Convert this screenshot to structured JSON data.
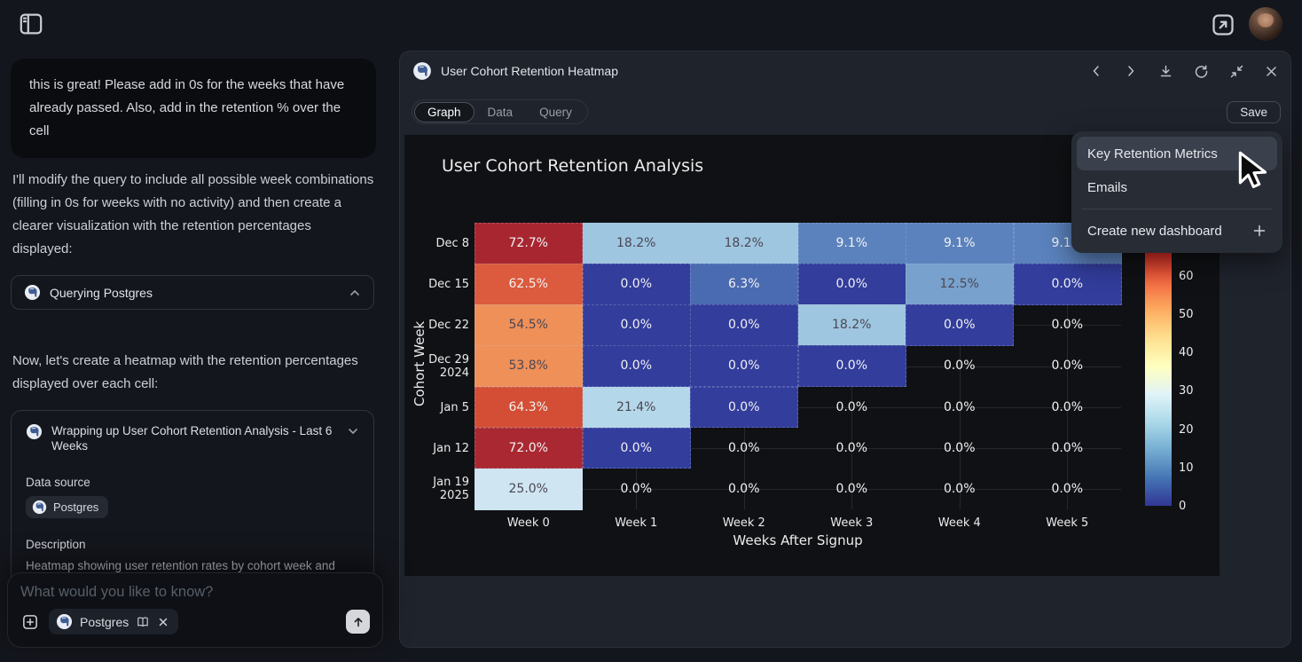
{
  "top_bar": {
    "open_external_tooltip": "open-in-new-window",
    "avatar": "user-profile-photo"
  },
  "chat": {
    "user_message": "this is great! Please add in 0s for the weeks that have already passed. Also, add in the retention % over the cell",
    "assistant_paragraph_1": "I'll modify the query to include all possible week combinations (filling in 0s for weeks with no activity) and then create a clearer visualization with the retention percentages displayed:",
    "tool_call": {
      "label": "Querying Postgres"
    },
    "assistant_paragraph_2": "Now, let's create a heatmap with the retention percentages displayed over each cell:",
    "artifact_card": {
      "title": "Wrapping up User Cohort Retention Analysis - Last 6 Weeks",
      "data_source_label": "Data source",
      "data_source_chip": "Postgres",
      "description_label": "Description",
      "description_text": "Heatmap showing user retention rates by cohort week and"
    },
    "composer": {
      "placeholder": "What would you like to know?",
      "context_chip": "Postgres"
    }
  },
  "panel": {
    "title": "User Cohort Retention Heatmap",
    "tabs": [
      {
        "label": "Graph",
        "active": true
      },
      {
        "label": "Data",
        "active": false
      },
      {
        "label": "Query",
        "active": false
      }
    ],
    "save_label": "Save"
  },
  "menu": {
    "items": [
      {
        "label": "Key Retention Metrics",
        "highlighted": true
      },
      {
        "label": "Emails",
        "highlighted": false
      }
    ],
    "create_item": {
      "label": "Create new dashboard"
    }
  },
  "chart_data": {
    "type": "heatmap",
    "title": "User Cohort Retention Analysis",
    "xlabel": "Weeks After Signup",
    "ylabel": "Cohort Week",
    "x_categories": [
      "Week 0",
      "Week 1",
      "Week 2",
      "Week 3",
      "Week 4",
      "Week 5"
    ],
    "y_categories": [
      "Dec 8",
      "Dec 15",
      "Dec 22",
      "Dec 29\n2024",
      "Jan 5",
      "Jan 12",
      "Jan 19\n2025"
    ],
    "values_pct": [
      [
        72.7,
        18.2,
        18.2,
        9.1,
        9.1,
        9.1
      ],
      [
        62.5,
        0.0,
        6.3,
        0.0,
        12.5,
        0.0
      ],
      [
        54.5,
        0.0,
        0.0,
        18.2,
        0.0,
        0.0
      ],
      [
        53.8,
        0.0,
        0.0,
        0.0,
        0.0,
        0.0
      ],
      [
        64.3,
        21.4,
        0.0,
        0.0,
        0.0,
        0.0
      ],
      [
        72.0,
        0.0,
        0.0,
        0.0,
        0.0,
        0.0
      ],
      [
        25.0,
        0.0,
        0.0,
        0.0,
        0.0,
        0.0
      ]
    ],
    "cell_colors": [
      [
        "#a72630",
        "#9fc6e0",
        "#9fc6e0",
        "#5b82bd",
        "#5b82bd",
        "#5b82bd"
      ],
      [
        "#dc5a3d",
        "#323d9c",
        "#4a6bb1",
        "#323d9c",
        "#78a2cd",
        "#323d9c"
      ],
      [
        "#ef9059",
        "#323d9c",
        "#323d9c",
        "#9fc6e0",
        "#323d9c",
        null
      ],
      [
        "#ef9059",
        "#323d9c",
        "#323d9c",
        "#323d9c",
        null,
        null
      ],
      [
        "#d34e35",
        "#b5d7ea",
        "#323d9c",
        null,
        null,
        null
      ],
      [
        "#a92831",
        "#323d9c",
        null,
        null,
        null,
        null
      ],
      [
        "#cfe6f2",
        null,
        null,
        null,
        null,
        null
      ]
    ],
    "zlim": [
      0,
      72.7
    ],
    "grid": true,
    "colorbar": {
      "position": "right",
      "ticks": [
        60,
        50,
        40,
        30,
        20,
        10,
        0
      ],
      "colormap": "RdYlBu_r",
      "gradient_stops": [
        "#a50026",
        "#d73027",
        "#f46d43",
        "#fdae61",
        "#fee090",
        "#ffffbf",
        "#e0f3f8",
        "#abd9e9",
        "#74add1",
        "#4575b4",
        "#313695"
      ]
    }
  }
}
